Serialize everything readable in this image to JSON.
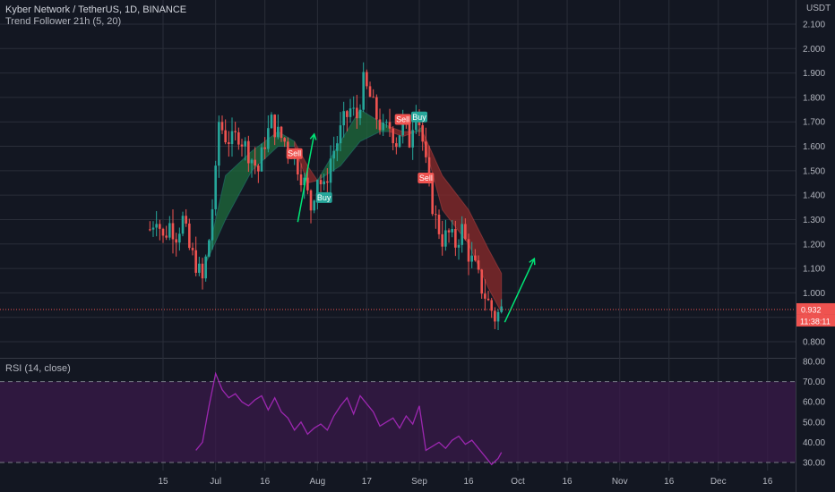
{
  "header": {
    "symbol_line": "Kyber Network / TetherUS, 1D, BINANCE",
    "indicator_line": "Trend Follower 21h (5, 20)",
    "currency": "USDT"
  },
  "rsi_panel": {
    "label": "RSI (14, close)"
  },
  "colors": {
    "background": "#131722",
    "grid": "#2a2e39",
    "up": "#26a69a",
    "down": "#ef5350",
    "cloud_up": "#1e6b3c",
    "cloud_down": "#8b2a2a",
    "rsi_line": "#9c27b0",
    "rsi_band": "#3a1a4a",
    "arrow": "#00e676"
  },
  "chart_data": [
    {
      "type": "candlestick",
      "title": "Kyber Network / TetherUS, 1D, BINANCE",
      "y_axis_side": "right",
      "ylim": [
        0.75,
        2.15
      ],
      "y_ticks": [
        "2.100",
        "2.000",
        "1.900",
        "1.800",
        "1.700",
        "1.600",
        "1.500",
        "1.400",
        "1.300",
        "1.200",
        "1.100",
        "1.000",
        "0.900",
        "0.800"
      ],
      "x_ticks": [
        "15",
        "Jul",
        "16",
        "Aug",
        "17",
        "Sep",
        "16",
        "Oct",
        "16",
        "Nov",
        "16",
        "Dec",
        "16"
      ],
      "last_price": "0.932",
      "countdown": "11:38:11",
      "price_path": [
        [
          "2021-06-11",
          1.26
        ],
        [
          "2021-06-13",
          1.32
        ],
        [
          "2021-06-15",
          1.22
        ],
        [
          "2021-06-17",
          1.28
        ],
        [
          "2021-06-19",
          1.24
        ],
        [
          "2021-06-21",
          1.3
        ],
        [
          "2021-06-23",
          1.18
        ],
        [
          "2021-06-25",
          1.12
        ],
        [
          "2021-06-27",
          1.05
        ],
        [
          "2021-06-29",
          1.22
        ],
        [
          "2021-07-01",
          1.48
        ],
        [
          "2021-07-02",
          1.7
        ],
        [
          "2021-07-04",
          1.64
        ],
        [
          "2021-07-06",
          1.62
        ],
        [
          "2021-07-08",
          1.65
        ],
        [
          "2021-07-10",
          1.6
        ],
        [
          "2021-07-12",
          1.55
        ],
        [
          "2021-07-14",
          1.5
        ],
        [
          "2021-07-16",
          1.62
        ],
        [
          "2021-07-18",
          1.7
        ],
        [
          "2021-07-20",
          1.65
        ],
        [
          "2021-07-22",
          1.62
        ],
        [
          "2021-07-24",
          1.58
        ],
        [
          "2021-07-26",
          1.52
        ],
        [
          "2021-07-28",
          1.45
        ],
        [
          "2021-07-30",
          1.35
        ],
        [
          "2021-08-01",
          1.48
        ],
        [
          "2021-08-03",
          1.42
        ],
        [
          "2021-08-05",
          1.55
        ],
        [
          "2021-08-07",
          1.62
        ],
        [
          "2021-08-09",
          1.7
        ],
        [
          "2021-08-11",
          1.75
        ],
        [
          "2021-08-13",
          1.72
        ],
        [
          "2021-08-15",
          1.86
        ],
        [
          "2021-08-17",
          1.8
        ],
        [
          "2021-08-19",
          1.72
        ],
        [
          "2021-08-21",
          1.66
        ],
        [
          "2021-08-23",
          1.68
        ],
        [
          "2021-08-25",
          1.62
        ],
        [
          "2021-08-27",
          1.7
        ],
        [
          "2021-08-29",
          1.62
        ],
        [
          "2021-08-31",
          1.78
        ],
        [
          "2021-09-02",
          1.62
        ],
        [
          "2021-09-04",
          1.42
        ],
        [
          "2021-09-06",
          1.3
        ],
        [
          "2021-09-08",
          1.22
        ],
        [
          "2021-09-10",
          1.24
        ],
        [
          "2021-09-12",
          1.2
        ],
        [
          "2021-09-14",
          1.26
        ],
        [
          "2021-09-16",
          1.16
        ],
        [
          "2021-09-18",
          1.1
        ],
        [
          "2021-09-20",
          1.02
        ],
        [
          "2021-09-22",
          0.96
        ],
        [
          "2021-09-24",
          0.9
        ],
        [
          "2021-09-26",
          0.93
        ]
      ],
      "cloud_segments": [
        {
          "trend": "up",
          "upper": [
            [
              "2021-06-28",
              1.12
            ],
            [
              "2021-07-04",
              1.48
            ],
            [
              "2021-07-12",
              1.58
            ],
            [
              "2021-07-20",
              1.66
            ],
            [
              "2021-07-25",
              1.62
            ]
          ],
          "lower": [
            [
              "2021-06-28",
              1.12
            ],
            [
              "2021-07-04",
              1.3
            ],
            [
              "2021-07-12",
              1.5
            ],
            [
              "2021-07-20",
              1.6
            ],
            [
              "2021-07-25",
              1.6
            ]
          ]
        },
        {
          "trend": "down",
          "upper": [
            [
              "2021-07-25",
              1.62
            ],
            [
              "2021-07-29",
              1.52
            ],
            [
              "2021-08-01",
              1.46
            ]
          ],
          "lower": [
            [
              "2021-07-25",
              1.6
            ],
            [
              "2021-07-29",
              1.45
            ],
            [
              "2021-08-01",
              1.46
            ]
          ]
        },
        {
          "trend": "up",
          "upper": [
            [
              "2021-08-01",
              1.46
            ],
            [
              "2021-08-08",
              1.62
            ],
            [
              "2021-08-14",
              1.75
            ],
            [
              "2021-08-20",
              1.7
            ],
            [
              "2021-08-23",
              1.68
            ]
          ],
          "lower": [
            [
              "2021-08-01",
              1.46
            ],
            [
              "2021-08-08",
              1.52
            ],
            [
              "2021-08-14",
              1.62
            ],
            [
              "2021-08-20",
              1.66
            ],
            [
              "2021-08-23",
              1.66
            ]
          ]
        },
        {
          "trend": "down",
          "upper": [
            [
              "2021-08-23",
              1.68
            ],
            [
              "2021-08-27",
              1.66
            ],
            [
              "2021-08-31",
              1.66
            ]
          ],
          "lower": [
            [
              "2021-08-23",
              1.66
            ],
            [
              "2021-08-27",
              1.64
            ],
            [
              "2021-08-31",
              1.66
            ]
          ]
        },
        {
          "trend": "up",
          "upper": [
            [
              "2021-08-31",
              1.66
            ],
            [
              "2021-09-02",
              1.68
            ]
          ],
          "lower": [
            [
              "2021-08-31",
              1.66
            ],
            [
              "2021-09-02",
              1.66
            ]
          ]
        },
        {
          "trend": "down",
          "upper": [
            [
              "2021-09-02",
              1.66
            ],
            [
              "2021-09-08",
              1.48
            ],
            [
              "2021-09-16",
              1.34
            ],
            [
              "2021-09-22",
              1.18
            ],
            [
              "2021-09-26",
              1.08
            ]
          ],
          "lower": [
            [
              "2021-09-02",
              1.64
            ],
            [
              "2021-09-08",
              1.34
            ],
            [
              "2021-09-16",
              1.2
            ],
            [
              "2021-09-22",
              1.02
            ],
            [
              "2021-09-26",
              0.92
            ]
          ]
        }
      ],
      "signals": [
        {
          "label": "Sell",
          "date": "2021-07-25",
          "price": 1.57,
          "kind": "sell"
        },
        {
          "label": "Buy",
          "date": "2021-08-03",
          "price": 1.39,
          "kind": "buy"
        },
        {
          "label": "Sell",
          "date": "2021-08-27",
          "price": 1.71,
          "kind": "sell"
        },
        {
          "label": "Buy",
          "date": "2021-09-01",
          "price": 1.72,
          "kind": "buy"
        },
        {
          "label": "Sell",
          "date": "2021-09-03",
          "price": 1.47,
          "kind": "sell"
        }
      ],
      "arrows": [
        {
          "from": [
            "2021-07-26",
            1.29
          ],
          "to": [
            "2021-07-31",
            1.65
          ]
        },
        {
          "from": [
            "2021-09-27",
            0.88
          ],
          "to": [
            "2021-10-06",
            1.14
          ]
        }
      ]
    },
    {
      "type": "line",
      "title": "RSI (14, close)",
      "ylim": [
        25,
        82
      ],
      "y_ticks": [
        "80.00",
        "70.00",
        "60.00",
        "50.00",
        "40.00",
        "30.00"
      ],
      "band": [
        30,
        70
      ],
      "x": [
        "2021-06-25",
        "2021-06-27",
        "2021-06-29",
        "2021-07-01",
        "2021-07-03",
        "2021-07-05",
        "2021-07-07",
        "2021-07-09",
        "2021-07-11",
        "2021-07-13",
        "2021-07-15",
        "2021-07-17",
        "2021-07-19",
        "2021-07-21",
        "2021-07-23",
        "2021-07-25",
        "2021-07-27",
        "2021-07-29",
        "2021-07-31",
        "2021-08-02",
        "2021-08-04",
        "2021-08-06",
        "2021-08-08",
        "2021-08-10",
        "2021-08-12",
        "2021-08-14",
        "2021-08-16",
        "2021-08-18",
        "2021-08-20",
        "2021-08-22",
        "2021-08-24",
        "2021-08-26",
        "2021-08-28",
        "2021-08-30",
        "2021-09-01",
        "2021-09-03",
        "2021-09-05",
        "2021-09-07",
        "2021-09-09",
        "2021-09-11",
        "2021-09-13",
        "2021-09-15",
        "2021-09-17",
        "2021-09-19",
        "2021-09-21",
        "2021-09-23",
        "2021-09-25",
        "2021-09-26"
      ],
      "values": [
        36,
        40,
        58,
        74,
        66,
        62,
        64,
        60,
        58,
        61,
        63,
        56,
        62,
        55,
        52,
        46,
        50,
        44,
        47,
        49,
        46,
        53,
        58,
        62,
        54,
        63,
        59,
        55,
        48,
        50,
        52,
        47,
        53,
        49,
        58,
        36,
        38,
        40,
        37,
        41,
        43,
        39,
        41,
        37,
        33,
        29,
        32,
        35
      ]
    }
  ]
}
